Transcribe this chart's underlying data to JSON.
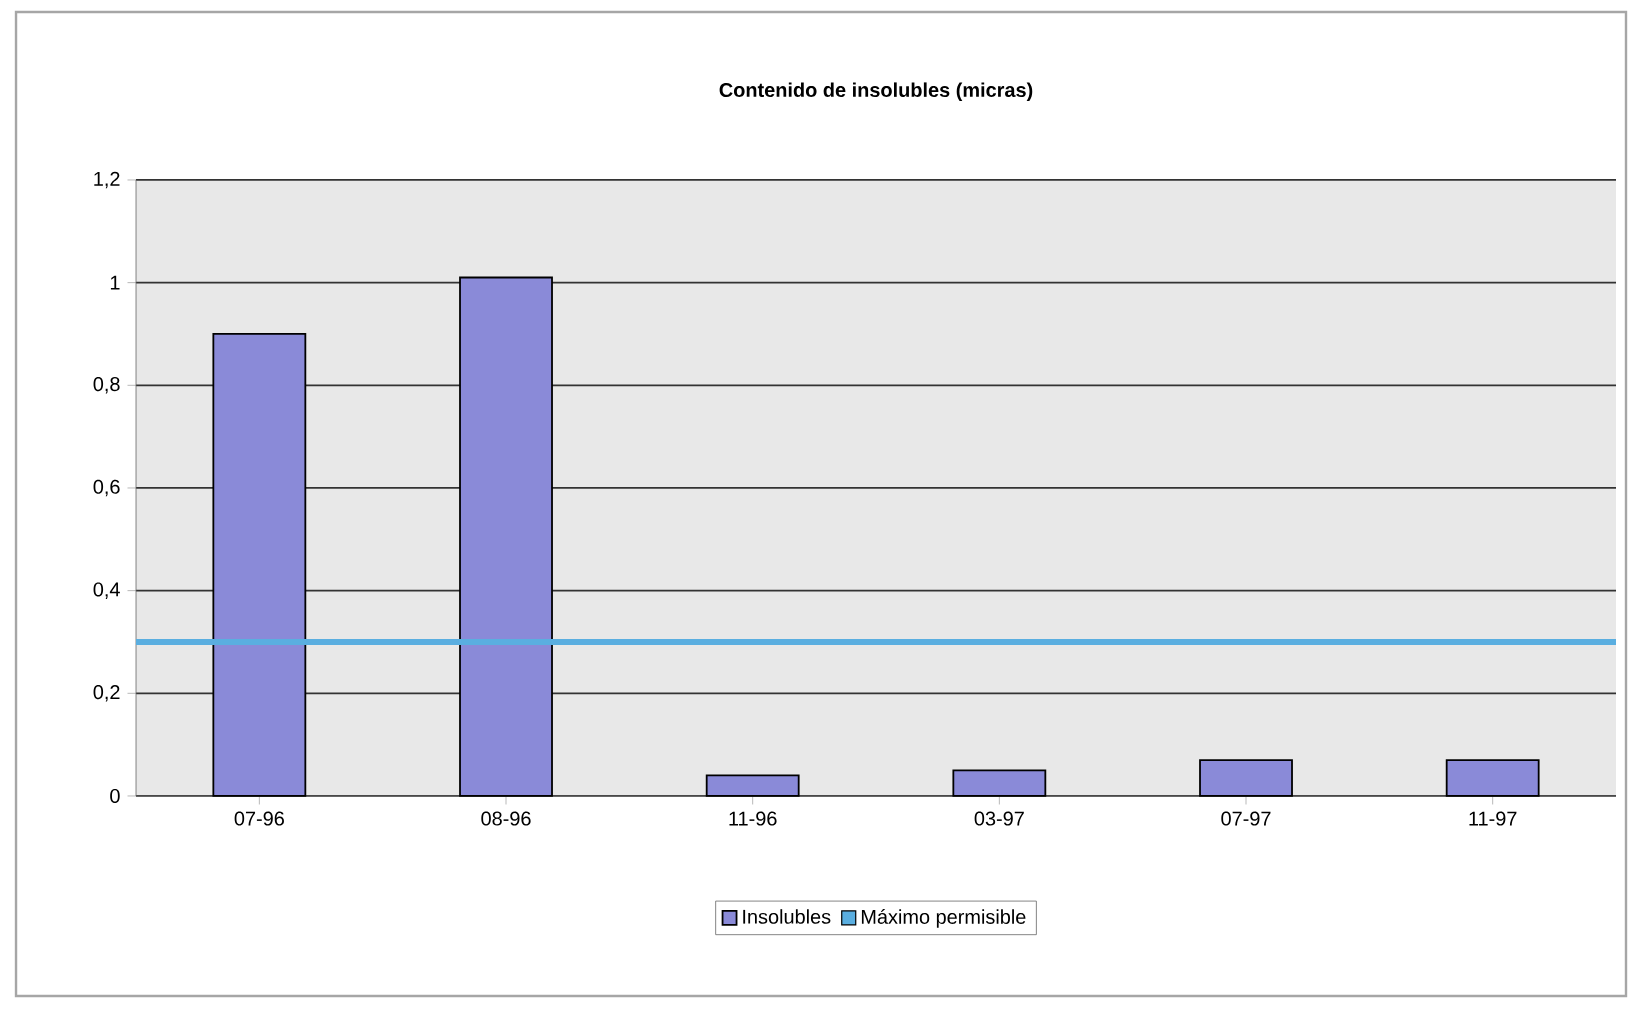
{
  "chart_data": {
    "type": "bar",
    "title": "Contenido de insolubles (micras)",
    "categories": [
      "07-96",
      "08-96",
      "11-96",
      "03-97",
      "07-97",
      "11-97"
    ],
    "series": [
      {
        "name": "Insolubles",
        "color": "#8a8ad8",
        "values": [
          0.9,
          1.01,
          0.04,
          0.05,
          0.07,
          0.07
        ]
      }
    ],
    "ref_lines": [
      {
        "axis": "y",
        "value": 0.3,
        "label": "Máximo permisible",
        "color": "#5aaee0"
      }
    ],
    "ylim": [
      0,
      1.2
    ],
    "yticks": [
      0,
      {
        "value": 0.2,
        "label": "0,2"
      },
      {
        "value": 0.4,
        "label": "0,4"
      },
      {
        "value": 0.6,
        "label": "0,6"
      },
      {
        "value": 0.8,
        "label": "0,8"
      },
      1,
      {
        "value": 1.2,
        "label": "1,2"
      }
    ],
    "grid": "y",
    "legend": "bottom"
  }
}
